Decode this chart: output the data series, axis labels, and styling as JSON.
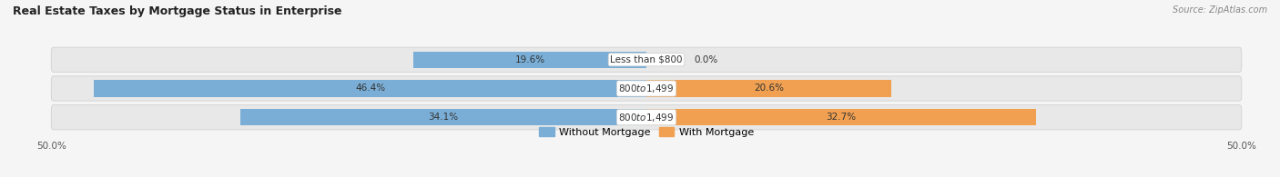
{
  "title": "Real Estate Taxes by Mortgage Status in Enterprise",
  "source": "Source: ZipAtlas.com",
  "rows": [
    {
      "label": "Less than $800",
      "without_mortgage": 19.6,
      "with_mortgage": 0.0
    },
    {
      "label": "$800 to $1,499",
      "without_mortgage": 46.4,
      "with_mortgage": 20.6
    },
    {
      "label": "$800 to $1,499",
      "without_mortgage": 34.1,
      "with_mortgage": 32.7
    }
  ],
  "color_without": "#7aaed6",
  "color_with": "#f0a050",
  "xlim": [
    -50,
    50
  ],
  "xtick_vals": [
    -50,
    50
  ],
  "legend_without": "Without Mortgage",
  "legend_with": "With Mortgage",
  "bar_height": 0.58,
  "row_bg_color": "#e8e8e8",
  "background_color": "#f5f5f5",
  "title_fontsize": 9,
  "label_fontsize": 7.5,
  "pct_fontsize": 7.5
}
